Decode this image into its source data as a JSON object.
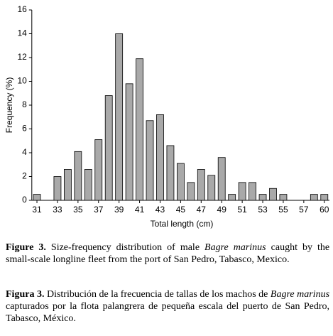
{
  "chart_data": {
    "type": "bar",
    "y_label": "Frequency (%)",
    "x_label": "Total length (cm)",
    "categories": [
      "31",
      null,
      "33",
      null,
      "35",
      null,
      "37",
      null,
      "39",
      null,
      "41",
      null,
      "43",
      null,
      "45",
      null,
      "47",
      null,
      "49",
      null,
      "51",
      null,
      "53",
      null,
      "55",
      null,
      "57",
      null,
      "60"
    ],
    "values": [
      0.5,
      0,
      2.0,
      2.6,
      4.1,
      2.6,
      5.1,
      8.8,
      14.0,
      9.8,
      11.9,
      6.7,
      7.2,
      4.6,
      3.1,
      1.5,
      2.6,
      2.1,
      3.6,
      0.5,
      1.5,
      1.5,
      0.5,
      1.0,
      0.5,
      0,
      0,
      0.5,
      0.5
    ],
    "color": "#a9a9a9",
    "ylim": [
      0,
      16
    ],
    "yticks": [
      0,
      2,
      4,
      6,
      8,
      10,
      12,
      14,
      16
    ],
    "grid": false
  },
  "captions": [
    {
      "label": "Figure 3.",
      "before": "Size-frequency distribution of male",
      "italic": "Bagre marinus",
      "after": "caught by the small-scale longline fleet from the port of San Pedro, Tabasco, Mexico."
    },
    {
      "label": "Figura 3.",
      "before": "Distribución de la frecuencia de tallas de los machos de",
      "italic": "Bagre marinus",
      "after": "capturados por la flota palangrera de pequeña escala del puerto de San Pedro, Tabasco, México."
    }
  ]
}
